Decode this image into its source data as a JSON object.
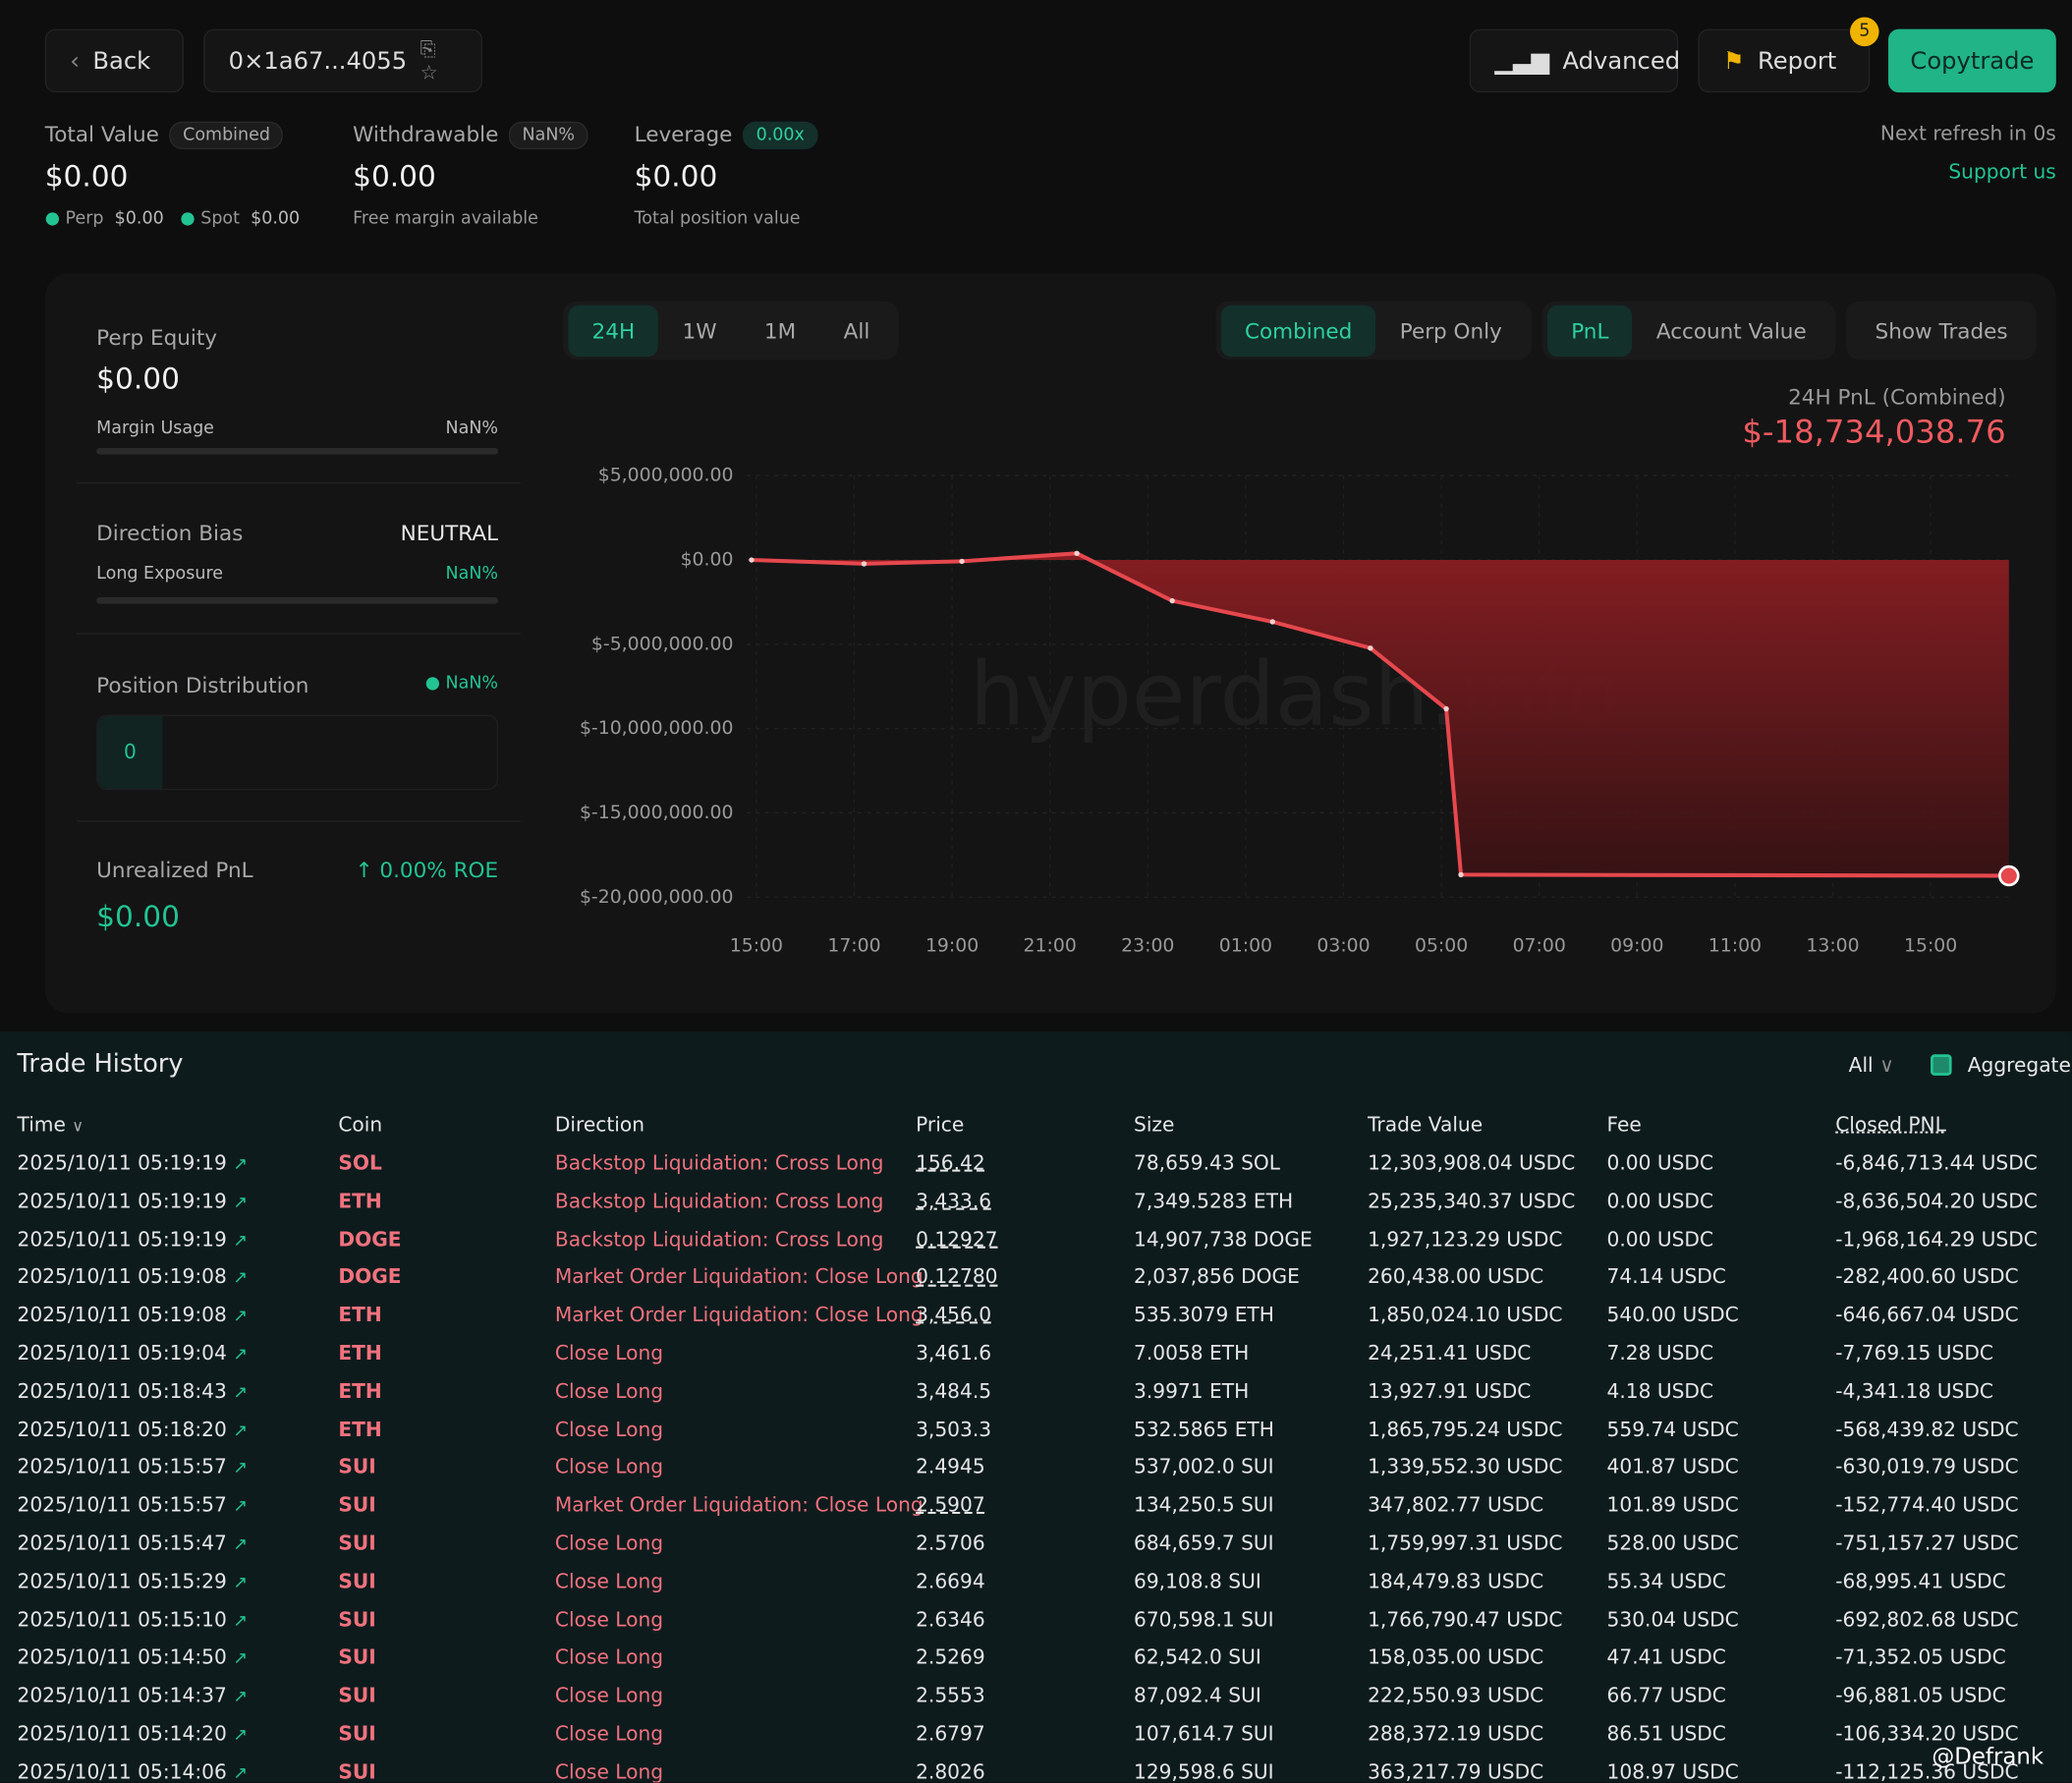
{
  "header": {
    "back": "Back",
    "address": "0×1a67...4055",
    "advanced": "Advanced",
    "report": "Report",
    "report_badge": 5,
    "copytrade": "Copytrade"
  },
  "summary": {
    "total_value": {
      "label": "Total Value",
      "tag": "Combined",
      "value": "$0.00",
      "perp_label": "Perp",
      "perp_value": "$0.00",
      "spot_label": "Spot",
      "spot_value": "$0.00"
    },
    "withdrawable": {
      "label": "Withdrawable",
      "tag": "NaN%",
      "value": "$0.00",
      "note": "Free margin available"
    },
    "leverage": {
      "label": "Leverage",
      "tag": "0.00x",
      "value": "$0.00",
      "note": "Total position value"
    },
    "refresh": "Next refresh in 0s",
    "support": "Support us"
  },
  "panel": {
    "perp_equity": {
      "label": "Perp Equity",
      "value": "$0.00",
      "sub_label": "Margin Usage",
      "sub_value": "NaN%"
    },
    "direction_bias": {
      "label": "Direction Bias",
      "value": "NEUTRAL",
      "sub_label": "Long Exposure",
      "sub_value": "NaN%"
    },
    "position_distribution": {
      "label": "Position Distribution",
      "value": "NaN%",
      "bar": "0"
    },
    "unrealized_pnl": {
      "label": "Unrealized PnL",
      "roe": "0.00% ROE",
      "value": "$0.00"
    }
  },
  "tabs": {
    "ranges": [
      "24H",
      "1W",
      "1M",
      "All"
    ],
    "modes": [
      "Combined",
      "Perp Only"
    ],
    "metrics": [
      "PnL",
      "Account Value"
    ],
    "show_trades": "Show Trades"
  },
  "pnl": {
    "label": "24H PnL (Combined)",
    "value": "$-18,734,038.76"
  },
  "watermark": "hyperdash.info",
  "chart": {
    "type": "line",
    "color": "#e5484d",
    "x": [
      -0.1,
      2.2,
      4.2,
      6.55,
      8.5,
      10.55,
      12.55,
      14.1,
      14.4,
      25.6
    ],
    "values": [
      0,
      -230000,
      -80000,
      390000,
      -2420000,
      -3670000,
      -5230000,
      -8830000,
      -18670000,
      -18734038.76
    ],
    "xlim": [
      -0.2,
      25.7
    ],
    "xticks": [
      {
        "value": 0,
        "label": "15:00"
      },
      {
        "value": 2,
        "label": "17:00"
      },
      {
        "value": 4,
        "label": "19:00"
      },
      {
        "value": 6,
        "label": "21:00"
      },
      {
        "value": 8,
        "label": "23:00"
      },
      {
        "value": 10,
        "label": "01:00"
      },
      {
        "value": 12,
        "label": "03:00"
      },
      {
        "value": 14,
        "label": "05:00"
      },
      {
        "value": 16,
        "label": "07:00"
      },
      {
        "value": 18,
        "label": "09:00"
      },
      {
        "value": 20,
        "label": "11:00"
      },
      {
        "value": 22,
        "label": "13:00"
      },
      {
        "value": 24,
        "label": "15:00"
      }
    ],
    "ylim": [
      -20000000,
      5000000
    ],
    "yticks": [
      {
        "value": 5000000,
        "label": "$5,000,000.00"
      },
      {
        "value": 0,
        "label": "$0.00"
      },
      {
        "value": -5000000,
        "label": "$-5,000,000.00"
      },
      {
        "value": -10000000,
        "label": "$-10,000,000.00"
      },
      {
        "value": -15000000,
        "label": "$-15,000,000.00"
      },
      {
        "value": -20000000,
        "label": "$-20,000,000.00"
      }
    ],
    "grid": true
  },
  "table": {
    "title": "Trade History",
    "filter": "All",
    "aggregate": "Aggregate",
    "columns": [
      "Time",
      "Coin",
      "Direction",
      "Price",
      "Size",
      "Trade Value",
      "Fee",
      "Closed PNL"
    ],
    "rows": [
      [
        "2025/10/11 05:19:19",
        "SOL",
        "Backstop Liquidation: Cross Long",
        "156.42",
        "78,659.43 SOL",
        "12,303,908.04 USDC",
        "0.00 USDC",
        "-6,846,713.44 USDC"
      ],
      [
        "2025/10/11 05:19:19",
        "ETH",
        "Backstop Liquidation: Cross Long",
        "3,433.6",
        "7,349.5283 ETH",
        "25,235,340.37 USDC",
        "0.00 USDC",
        "-8,636,504.20 USDC"
      ],
      [
        "2025/10/11 05:19:19",
        "DOGE",
        "Backstop Liquidation: Cross Long",
        "0.12927",
        "14,907,738 DOGE",
        "1,927,123.29 USDC",
        "0.00 USDC",
        "-1,968,164.29 USDC"
      ],
      [
        "2025/10/11 05:19:08",
        "DOGE",
        "Market Order Liquidation: Close Long",
        "0.12780",
        "2,037,856 DOGE",
        "260,438.00 USDC",
        "74.14 USDC",
        "-282,400.60 USDC"
      ],
      [
        "2025/10/11 05:19:08",
        "ETH",
        "Market Order Liquidation: Close Long",
        "3,456.0",
        "535.3079 ETH",
        "1,850,024.10 USDC",
        "540.00 USDC",
        "-646,667.04 USDC"
      ],
      [
        "2025/10/11 05:19:04",
        "ETH",
        "Close Long",
        "3,461.6",
        "7.0058 ETH",
        "24,251.41 USDC",
        "7.28 USDC",
        "-7,769.15 USDC"
      ],
      [
        "2025/10/11 05:18:43",
        "ETH",
        "Close Long",
        "3,484.5",
        "3.9971 ETH",
        "13,927.91 USDC",
        "4.18 USDC",
        "-4,341.18 USDC"
      ],
      [
        "2025/10/11 05:18:20",
        "ETH",
        "Close Long",
        "3,503.3",
        "532.5865 ETH",
        "1,865,795.24 USDC",
        "559.74 USDC",
        "-568,439.82 USDC"
      ],
      [
        "2025/10/11 05:15:57",
        "SUI",
        "Close Long",
        "2.4945",
        "537,002.0 SUI",
        "1,339,552.30 USDC",
        "401.87 USDC",
        "-630,019.79 USDC"
      ],
      [
        "2025/10/11 05:15:57",
        "SUI",
        "Market Order Liquidation: Close Long",
        "2.5907",
        "134,250.5 SUI",
        "347,802.77 USDC",
        "101.89 USDC",
        "-152,774.40 USDC"
      ],
      [
        "2025/10/11 05:15:47",
        "SUI",
        "Close Long",
        "2.5706",
        "684,659.7 SUI",
        "1,759,997.31 USDC",
        "528.00 USDC",
        "-751,157.27 USDC"
      ],
      [
        "2025/10/11 05:15:29",
        "SUI",
        "Close Long",
        "2.6694",
        "69,108.8 SUI",
        "184,479.83 USDC",
        "55.34 USDC",
        "-68,995.41 USDC"
      ],
      [
        "2025/10/11 05:15:10",
        "SUI",
        "Close Long",
        "2.6346",
        "670,598.1 SUI",
        "1,766,790.47 USDC",
        "530.04 USDC",
        "-692,802.68 USDC"
      ],
      [
        "2025/10/11 05:14:50",
        "SUI",
        "Close Long",
        "2.5269",
        "62,542.0 SUI",
        "158,035.00 USDC",
        "47.41 USDC",
        "-71,352.05 USDC"
      ],
      [
        "2025/10/11 05:14:37",
        "SUI",
        "Close Long",
        "2.5553",
        "87,092.4 SUI",
        "222,550.93 USDC",
        "66.77 USDC",
        "-96,881.05 USDC"
      ],
      [
        "2025/10/11 05:14:20",
        "SUI",
        "Close Long",
        "2.6797",
        "107,614.7 SUI",
        "288,372.19 USDC",
        "86.51 USDC",
        "-106,334.20 USDC"
      ],
      [
        "2025/10/11 05:14:06",
        "SUI",
        "Close Long",
        "2.8026",
        "129,598.6 SUI",
        "363,217.79 USDC",
        "108.97 USDC",
        "-112,125.36 USDC"
      ]
    ]
  },
  "footer_mark": "@Defrank"
}
